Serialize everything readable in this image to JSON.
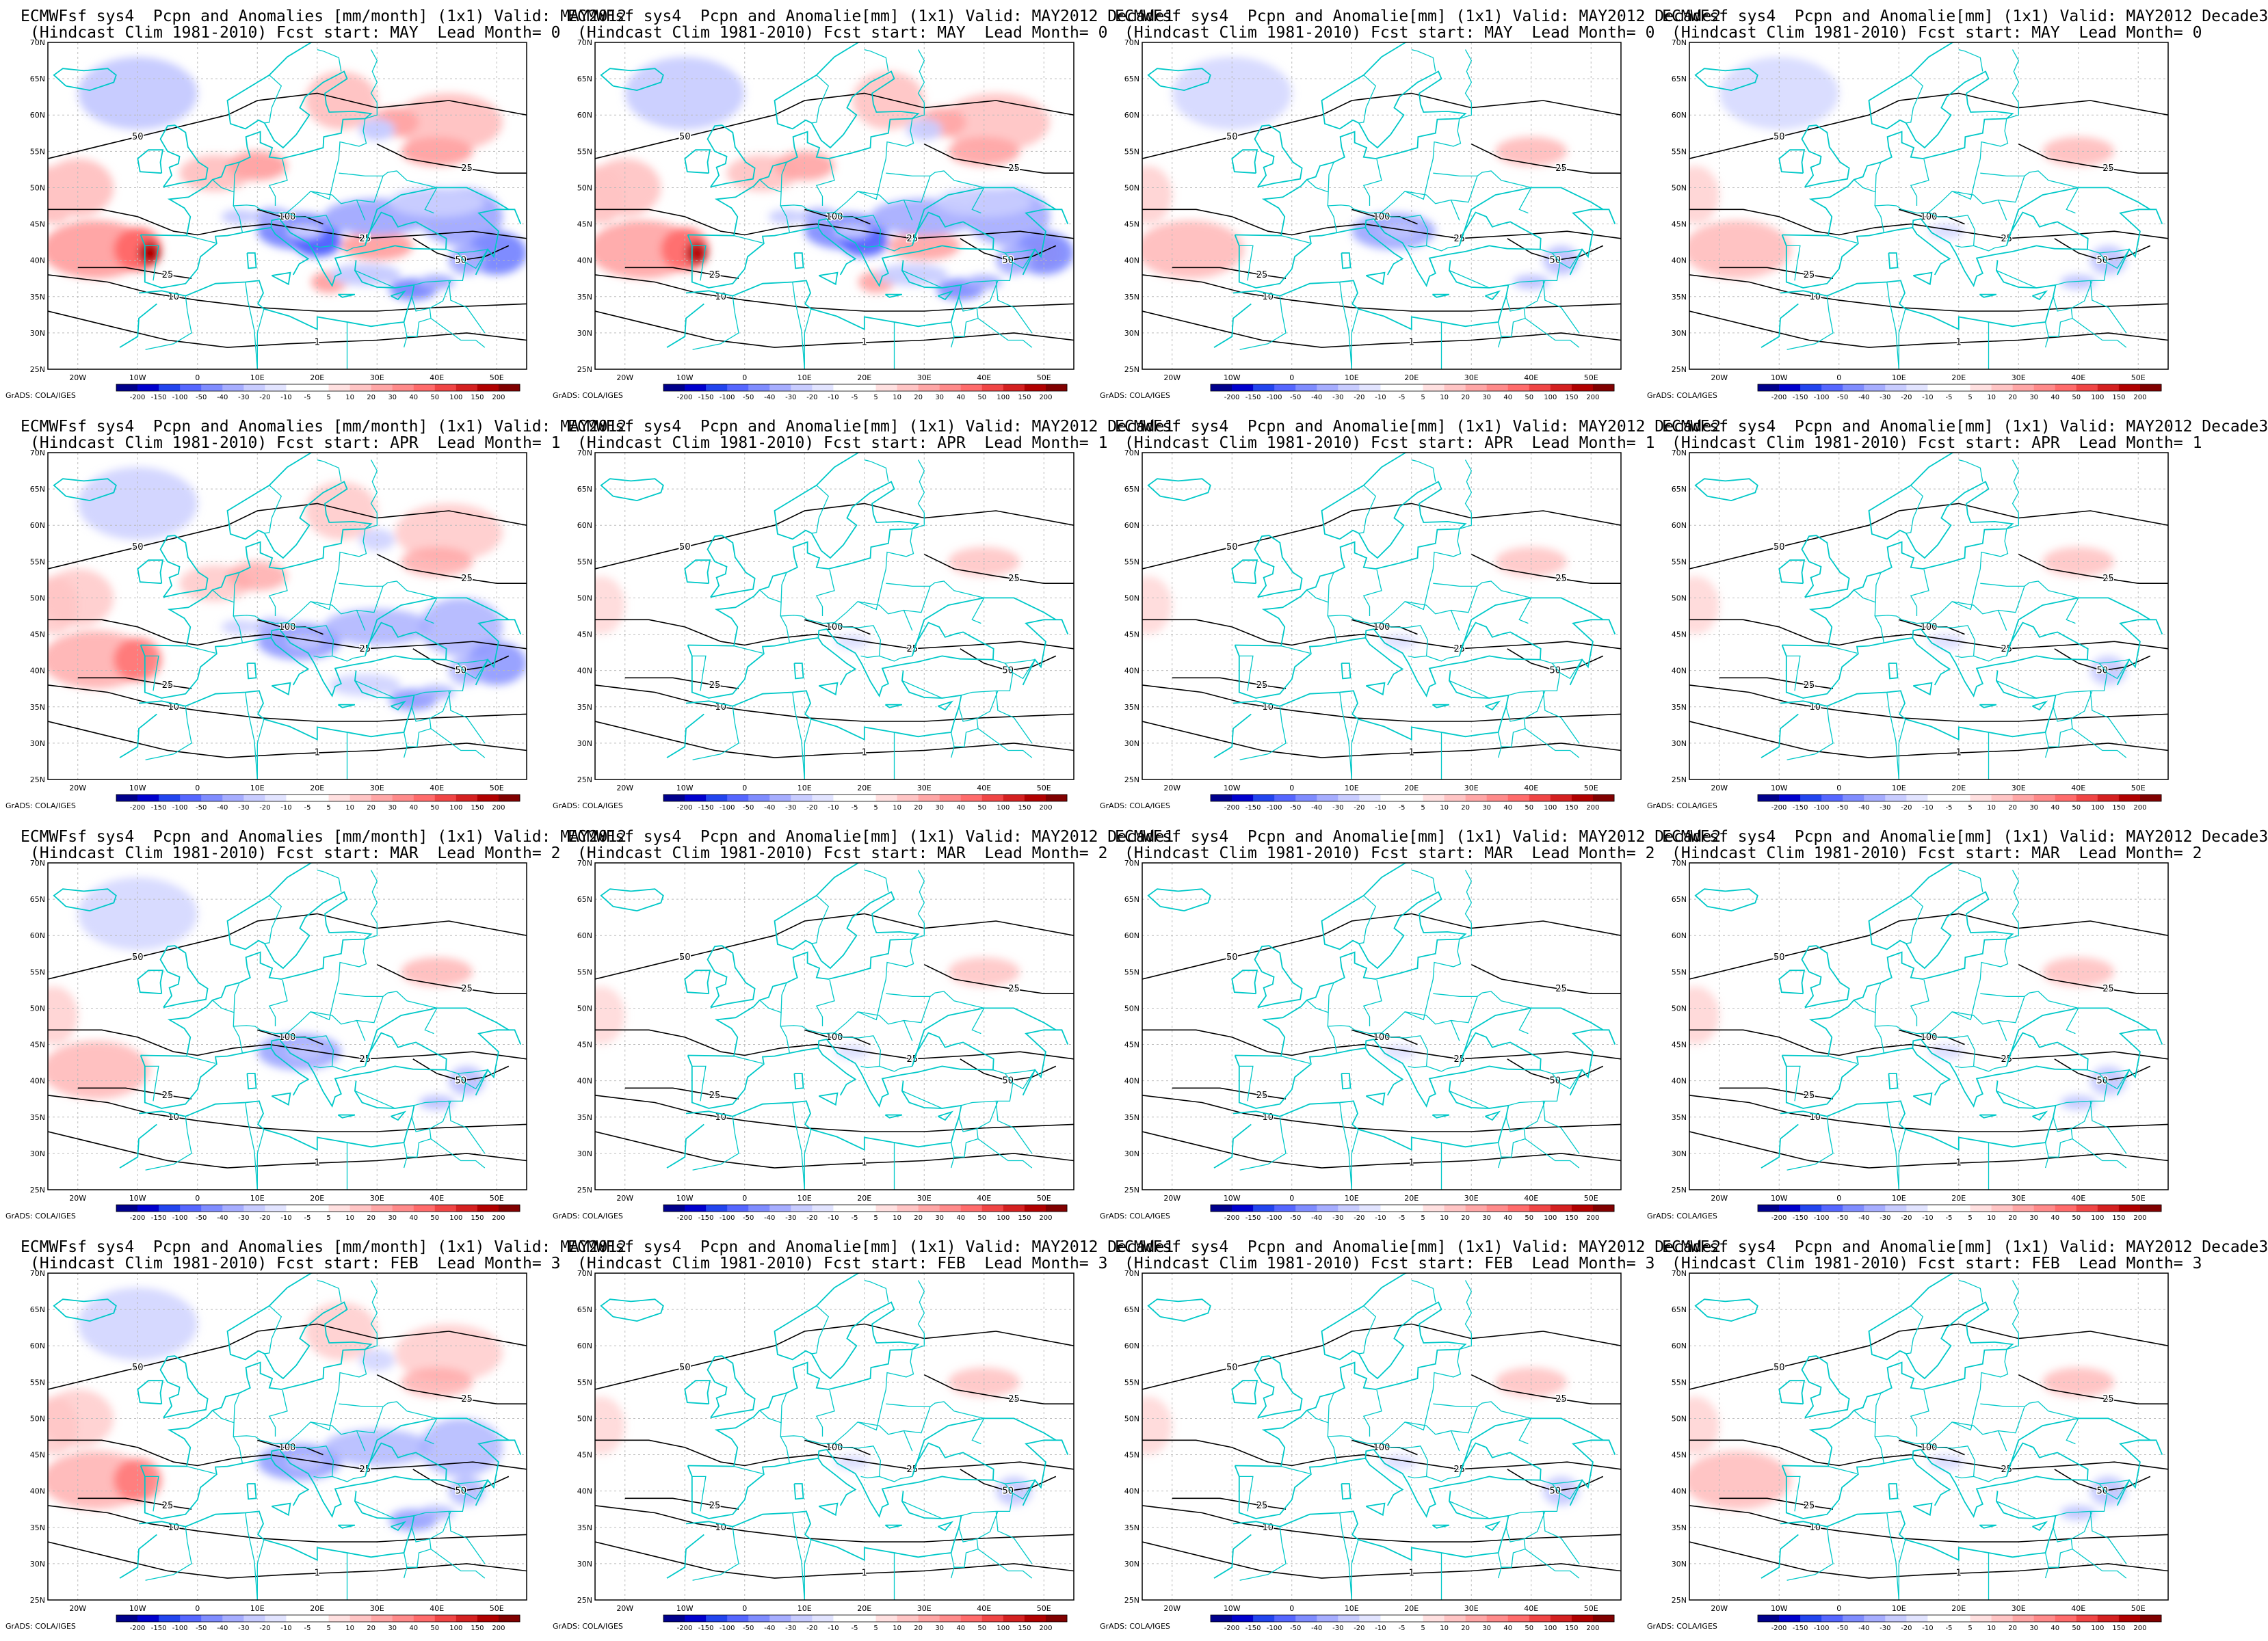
{
  "colors": {
    "coast": "#00c8c8",
    "contour": "#000000",
    "grid": "#bbbbbb",
    "scale": [
      "#00008b",
      "#0000cd",
      "#2244ee",
      "#5566ff",
      "#7f8cff",
      "#a6adff",
      "#c8ccff",
      "#e2e4ff",
      "#ffffff",
      "#ffffff",
      "#ffe0e0",
      "#ffc4c4",
      "#ffa6a6",
      "#ff8a8a",
      "#ff6b6b",
      "#f04545",
      "#d42020",
      "#b00000",
      "#800000"
    ]
  },
  "colorbar": {
    "labels": [
      "-200",
      "-150",
      "-100",
      "-50",
      "-40",
      "-30",
      "-20",
      "-10",
      "-5",
      "5",
      "10",
      "20",
      "30",
      "40",
      "50",
      "100",
      "150",
      "200"
    ],
    "credit": "GrADS: COLA/IGES"
  },
  "lon_labels": [
    "20W",
    "10W",
    "0",
    "10E",
    "20E",
    "30E",
    "40E",
    "50E"
  ],
  "lat_labels": [
    "70N",
    "65N",
    "60N",
    "55N",
    "50N",
    "45N",
    "40N",
    "35N",
    "30N",
    "25N"
  ],
  "panels": [
    {
      "line1": "ECMWFsf sys4  Pcpn and Anomalies [mm/month] (1x1) Valid: MAY2012",
      "line2": "(Hindcast Clim 1981-2010) Fcst start: MAY  Lead Month= 0",
      "intensity": 1.0
    },
    {
      "line1": "ECMWFsf sys4  Pcpn and Anomalie[mm] (1x1) Valid: MAY2012 Decade1",
      "line2": "(Hindcast Clim 1981-2010) Fcst start: MAY  Lead Month= 0",
      "intensity": 0.85
    },
    {
      "line1": "ECMWFsf sys4  Pcpn and Anomalie[mm] (1x1) Valid: MAY2012 Decade2",
      "line2": "(Hindcast Clim 1981-2010) Fcst start: MAY  Lead Month= 0",
      "intensity": 0.4
    },
    {
      "line1": "ECMWFsf sys4  Pcpn and Anomalie[mm] (1x1) Valid: MAY2012 Decade3",
      "line2": "(Hindcast Clim 1981-2010) Fcst start: MAY  Lead Month= 0",
      "intensity": 0.35
    },
    {
      "line1": "ECMWFsf sys4  Pcpn and Anomalies [mm/month] (1x1) Valid: MAY2012",
      "line2": "(Hindcast Clim 1981-2010) Fcst start: APR  Lead Month= 1",
      "intensity": 0.6
    },
    {
      "line1": "ECMWFsf sys4  Pcpn and Anomalie[mm] (1x1) Valid: MAY2012 Decade1",
      "line2": "(Hindcast Clim 1981-2010) Fcst start: APR  Lead Month= 1",
      "intensity": 0.15
    },
    {
      "line1": "ECMWFsf sys4  Pcpn and Anomalie[mm] (1x1) Valid: MAY2012 Decade2",
      "line2": "(Hindcast Clim 1981-2010) Fcst start: APR  Lead Month= 1",
      "intensity": 0.15
    },
    {
      "line1": "ECMWFsf sys4  Pcpn and Anomalie[mm] (1x1) Valid: MAY2012 Decade3",
      "line2": "(Hindcast Clim 1981-2010) Fcst start: APR  Lead Month= 1",
      "intensity": 0.2
    },
    {
      "line1": "ECMWFsf sys4  Pcpn and Anomalies [mm/month] (1x1) Valid: MAY2012",
      "line2": "(Hindcast Clim 1981-2010) Fcst start: MAR  Lead Month= 2",
      "intensity": 0.4
    },
    {
      "line1": "ECMWFsf sys4  Pcpn and Anomalie[mm] (1x1) Valid: MAY2012 Decade1",
      "line2": "(Hindcast Clim 1981-2010) Fcst start: MAR  Lead Month= 2",
      "intensity": 0.15
    },
    {
      "line1": "ECMWFsf sys4  Pcpn and Anomalie[mm] (1x1) Valid: MAY2012 Decade2",
      "line2": "(Hindcast Clim 1981-2010) Fcst start: MAR  Lead Month= 2",
      "intensity": 0.1
    },
    {
      "line1": "ECMWFsf sys4  Pcpn and Anomalie[mm] (1x1) Valid: MAY2012 Decade3",
      "line2": "(Hindcast Clim 1981-2010) Fcst start: MAR  Lead Month= 2",
      "intensity": 0.25
    },
    {
      "line1": "ECMWFsf sys4  Pcpn and Anomalies [mm/month] (1x1) Valid: MAY2012",
      "line2": "(Hindcast Clim 1981-2010) Fcst start: FEB  Lead Month= 3",
      "intensity": 0.5
    },
    {
      "line1": "ECMWFsf sys4  Pcpn and Anomalie[mm] (1x1) Valid: MAY2012 Decade1",
      "line2": "(Hindcast Clim 1981-2010) Fcst start: FEB  Lead Month= 3",
      "intensity": 0.2
    },
    {
      "line1": "ECMWFsf sys4  Pcpn and Anomalie[mm] (1x1) Valid: MAY2012 Decade2",
      "line2": "(Hindcast Clim 1981-2010) Fcst start: FEB  Lead Month= 3",
      "intensity": 0.2
    },
    {
      "line1": "ECMWFsf sys4  Pcpn and Anomalie[mm] (1x1) Valid: MAY2012 Decade3",
      "line2": "(Hindcast Clim 1981-2010) Fcst start: FEB  Lead Month= 3",
      "intensity": 0.3
    }
  ]
}
